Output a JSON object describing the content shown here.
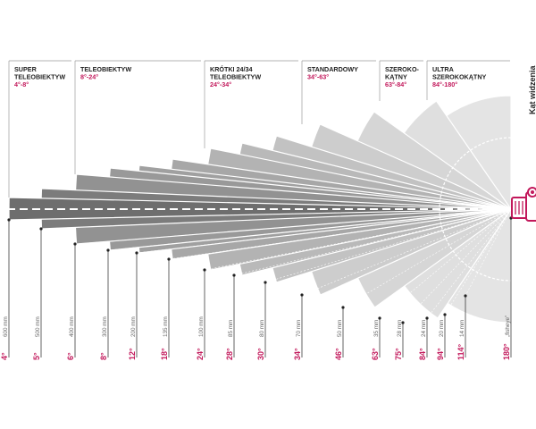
{
  "side_label": "Kąt widzenia",
  "categories": [
    {
      "title_lines": [
        "SUPER",
        "TELEOBIEKTYW"
      ],
      "range": "4°-8°"
    },
    {
      "title_lines": [
        "TELEOBIEKTYW"
      ],
      "range": "8°-24°"
    },
    {
      "title_lines": [
        "KRÓTKI 24/34",
        "TELEOBIEKTYW"
      ],
      "range": "24°-34°"
    },
    {
      "title_lines": [
        "STANDARDOWY"
      ],
      "range": "34°-63°"
    },
    {
      "title_lines": [
        "SZEROKO-",
        "KĄTNY"
      ],
      "range": "63°-84°"
    },
    {
      "title_lines": [
        "ULTRA",
        "SZEROKOKĄTNY"
      ],
      "range": "84°-180°"
    }
  ],
  "lenses": [
    {
      "focal": "600 mm",
      "angle": "4°"
    },
    {
      "focal": "500 mm",
      "angle": "5°"
    },
    {
      "focal": "400 mm",
      "angle": "6°"
    },
    {
      "focal": "300 mm",
      "angle": "8°"
    },
    {
      "focal": "200 mm",
      "angle": "12°"
    },
    {
      "focal": "135 mm",
      "angle": "18°"
    },
    {
      "focal": "100 mm",
      "angle": "24°"
    },
    {
      "focal": "85 mm",
      "angle": "28°"
    },
    {
      "focal": "80 mm",
      "angle": "30°"
    },
    {
      "focal": "70 mm",
      "angle": "34°"
    },
    {
      "focal": "50 mm",
      "angle": "46°"
    },
    {
      "focal": "35 mm",
      "angle": "63°"
    },
    {
      "focal": "28 mm",
      "angle": "75°"
    },
    {
      "focal": "24 mm",
      "angle": "84°"
    },
    {
      "focal": "20 mm",
      "angle": "94°"
    },
    {
      "focal": "14 mm",
      "angle": "114°"
    },
    {
      "focal": "„fisheye”",
      "angle": "180°"
    }
  ]
}
